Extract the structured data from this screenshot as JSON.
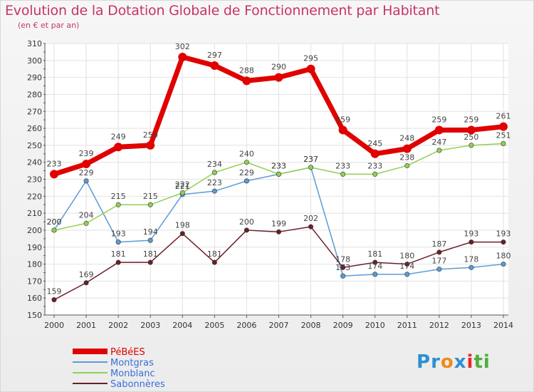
{
  "title": "Evolution de la Dotation Globale de Fonctionnement par Habitant",
  "subtitle": "(en € et par an)",
  "logo": {
    "text": "Proxiti",
    "letters": [
      "P",
      "r",
      "o",
      "x",
      "i",
      "t",
      "i"
    ],
    "colors": [
      "#2e8fd0",
      "#2e8fd0",
      "#f08a1c",
      "#2e8fd0",
      "#e8262a",
      "#4caf3c",
      "#4caf3c"
    ]
  },
  "chart_data": {
    "type": "line",
    "title": "Evolution de la Dotation Globale de Fonctionnement par Habitant",
    "xlabel": "",
    "ylabel": "(en € et par an)",
    "ylim": [
      150,
      310
    ],
    "yticks": [
      150,
      160,
      170,
      180,
      190,
      200,
      210,
      220,
      230,
      240,
      250,
      260,
      270,
      280,
      290,
      300,
      310
    ],
    "grid": true,
    "legend_position": "bottom-left",
    "categories": [
      "2000",
      "2001",
      "2002",
      "2003",
      "2004",
      "2005",
      "2006",
      "2007",
      "2008",
      "2009",
      "2010",
      "2011",
      "2012",
      "2013",
      "2014"
    ],
    "series": [
      {
        "name": "PéBéES",
        "color": "#e00000",
        "values": [
          233,
          239,
          249,
          250,
          302,
          297,
          288,
          290,
          295,
          259,
          245,
          248,
          259,
          259,
          261
        ]
      },
      {
        "name": "Montgras",
        "color": "#5b9bd5",
        "values": [
          200,
          229,
          193,
          194,
          221,
          223,
          229,
          233,
          237,
          173,
          174,
          174,
          177,
          178,
          180
        ]
      },
      {
        "name": "Monblanc",
        "color": "#92d050",
        "values": [
          200,
          204,
          215,
          215,
          222,
          234,
          240,
          233,
          237,
          233,
          233,
          238,
          247,
          250,
          251
        ]
      },
      {
        "name": "Sabonnères",
        "color": "#6b1f28",
        "values": [
          159,
          169,
          181,
          181,
          198,
          181,
          200,
          199,
          202,
          178,
          181,
          180,
          187,
          193,
          193
        ]
      }
    ]
  }
}
